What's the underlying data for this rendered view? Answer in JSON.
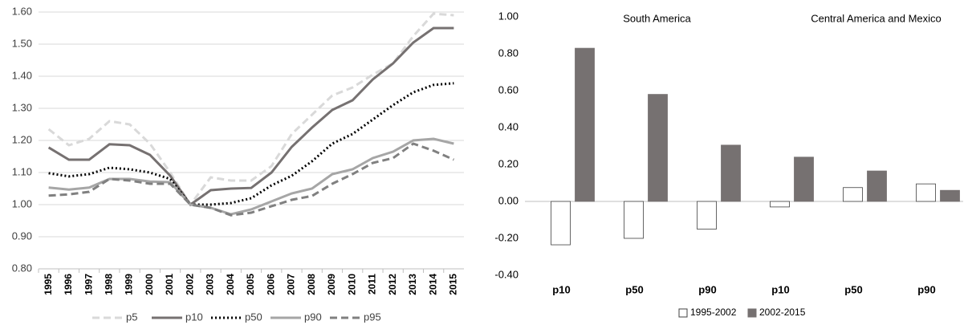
{
  "chart_data": [
    {
      "type": "line",
      "categories": [
        "1995",
        "1996",
        "1997",
        "1998",
        "1999",
        "2000",
        "2001",
        "2002",
        "2003",
        "2004",
        "2005",
        "2006",
        "2007",
        "2008",
        "2009",
        "2010",
        "2011",
        "2012",
        "2013",
        "2014",
        "2015"
      ],
      "series": [
        {
          "name": "p5",
          "color": "#d9d9d9",
          "style": "dashed",
          "values": [
            1.235,
            1.185,
            1.205,
            1.26,
            1.25,
            1.19,
            1.1,
            1.0,
            1.085,
            1.075,
            1.075,
            1.12,
            1.22,
            1.28,
            1.34,
            1.365,
            1.405,
            1.44,
            1.525,
            1.595,
            1.59
          ]
        },
        {
          "name": "p10",
          "color": "#767171",
          "style": "solid",
          "values": [
            1.178,
            1.14,
            1.14,
            1.188,
            1.185,
            1.155,
            1.09,
            1.0,
            1.045,
            1.05,
            1.052,
            1.1,
            1.18,
            1.24,
            1.295,
            1.325,
            1.39,
            1.44,
            1.505,
            1.55,
            1.55
          ]
        },
        {
          "name": "p50",
          "color": "#000000",
          "style": "dotted",
          "values": [
            1.098,
            1.088,
            1.095,
            1.115,
            1.11,
            1.1,
            1.08,
            1.0,
            1.0,
            1.005,
            1.02,
            1.06,
            1.09,
            1.135,
            1.19,
            1.22,
            1.265,
            1.31,
            1.35,
            1.373,
            1.378
          ]
        },
        {
          "name": "p90",
          "color": "#a6a6a6",
          "style": "solid",
          "values": [
            1.053,
            1.047,
            1.053,
            1.08,
            1.08,
            1.072,
            1.07,
            1.0,
            0.99,
            0.97,
            0.985,
            1.01,
            1.035,
            1.05,
            1.095,
            1.11,
            1.145,
            1.165,
            1.2,
            1.205,
            1.19
          ]
        },
        {
          "name": "p95",
          "color": "#808080",
          "style": "dashed",
          "values": [
            1.028,
            1.032,
            1.04,
            1.08,
            1.075,
            1.065,
            1.065,
            1.0,
            0.99,
            0.967,
            0.975,
            0.995,
            1.015,
            1.027,
            1.065,
            1.095,
            1.13,
            1.145,
            1.19,
            1.168,
            1.14
          ]
        }
      ],
      "ylim": [
        0.8,
        1.6
      ],
      "yticks": [
        {
          "value": 0.8,
          "label": "0.80"
        },
        {
          "value": 0.9,
          "label": "0.90"
        },
        {
          "value": 1.0,
          "label": "1.00"
        },
        {
          "value": 1.1,
          "label": "1.10"
        },
        {
          "value": 1.2,
          "label": "1.20"
        },
        {
          "value": 1.3,
          "label": "1.30"
        },
        {
          "value": 1.4,
          "label": "1.40"
        },
        {
          "value": 1.5,
          "label": "1.50"
        },
        {
          "value": 1.6,
          "label": "1.60"
        }
      ],
      "grid": true,
      "legend": "bottom"
    },
    {
      "type": "bar",
      "group_labels": [
        "South America",
        "Central America and Mexico"
      ],
      "categories": [
        "p10",
        "p50",
        "p90",
        "p10",
        "p50",
        "p90"
      ],
      "series": [
        {
          "name": "1995-2002",
          "color": "#ffffff",
          "values": [
            -0.235,
            -0.2,
            -0.15,
            -0.03,
            0.075,
            0.095
          ]
        },
        {
          "name": "2002-2015",
          "color": "#767171",
          "values": [
            0.83,
            0.58,
            0.305,
            0.24,
            0.165,
            0.06
          ]
        }
      ],
      "ylim": [
        -0.4,
        1.0
      ],
      "yticks": [
        {
          "value": -0.4,
          "label": "-0.40"
        },
        {
          "value": -0.2,
          "label": "-0.20"
        },
        {
          "value": 0,
          "label": "0.00"
        },
        {
          "value": 0.2,
          "label": "0.20"
        },
        {
          "value": 0.4,
          "label": "0.40"
        },
        {
          "value": 0.6,
          "label": "0.60"
        },
        {
          "value": 0.8,
          "label": "0.80"
        },
        {
          "value": 1.0,
          "label": "1.00"
        }
      ],
      "grid": false,
      "legend": "bottom"
    }
  ]
}
